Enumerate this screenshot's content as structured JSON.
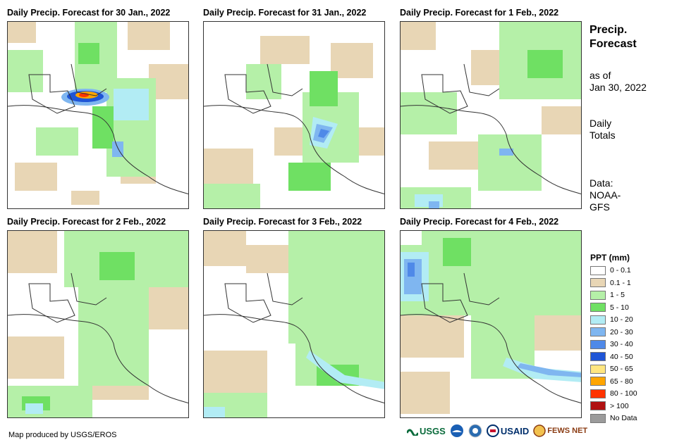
{
  "panels": [
    {
      "title": "Daily Precip. Forecast for 30 Jan., 2022"
    },
    {
      "title": "Daily Precip. Forecast for 31 Jan., 2022"
    },
    {
      "title": "Daily Precip. Forecast for 1 Feb., 2022"
    },
    {
      "title": "Daily Precip. Forecast for 2 Feb., 2022"
    },
    {
      "title": "Daily Precip. Forecast for 3 Feb., 2022"
    },
    {
      "title": "Daily Precip. Forecast for 4 Feb., 2022"
    }
  ],
  "info": {
    "title_line1": "Precip.",
    "title_line2": "Forecast",
    "asof_line1": "as of",
    "asof_line2": "Jan 30, 2022",
    "totals_line1": "Daily",
    "totals_line2": "Totals",
    "data_line1": "Data:",
    "data_line2": "NOAA-",
    "data_line3": "GFS"
  },
  "legend": {
    "title": "PPT (mm)",
    "items": [
      {
        "label": "0 - 0.1",
        "color": "#ffffff"
      },
      {
        "label": "0.1 - 1",
        "color": "#e8d6b5"
      },
      {
        "label": "1 - 5",
        "color": "#b5f0a8"
      },
      {
        "label": "5 - 10",
        "color": "#6fe063"
      },
      {
        "label": "10 - 20",
        "color": "#b2ecf4"
      },
      {
        "label": "20 - 30",
        "color": "#7fb6f0"
      },
      {
        "label": "30 - 40",
        "color": "#4f89e8"
      },
      {
        "label": "40 - 50",
        "color": "#1f55d6"
      },
      {
        "label": "50 - 65",
        "color": "#ffe680"
      },
      {
        "label": "65 - 80",
        "color": "#ffa500"
      },
      {
        "label": "80 - 100",
        "color": "#ff3300"
      },
      {
        "label": "> 100",
        "color": "#b01010"
      },
      {
        "label": "No Data",
        "color": "#9b9b9b"
      }
    ]
  },
  "footer": {
    "credit": "Map produced by USGS/EROS"
  },
  "logos": {
    "usgs": "USGS",
    "usaid": "USAID",
    "fews": "FEWS NET"
  }
}
